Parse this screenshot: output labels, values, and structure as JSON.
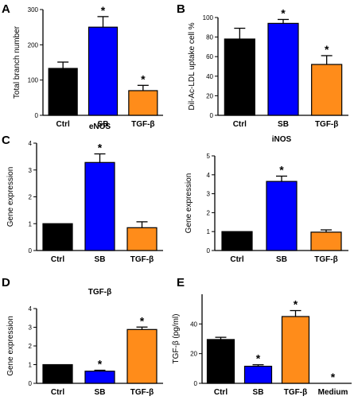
{
  "chart_data": [
    {
      "type": "bar",
      "panel_label": "A",
      "title": "",
      "ylabel": "Total branch number",
      "categories": [
        "Ctrl",
        "SB",
        "TGF-β"
      ],
      "values": [
        133,
        250,
        70
      ],
      "errors": [
        18,
        30,
        15
      ],
      "significant": [
        false,
        true,
        true
      ],
      "colors": [
        "#000000",
        "#0000ff",
        "#ff8c1a"
      ],
      "ylim": [
        0,
        300
      ],
      "yticks": [
        0,
        100,
        200,
        300
      ],
      "grid": false
    },
    {
      "type": "bar",
      "panel_label": "B",
      "title": "",
      "ylabel": "Dil-Ac-LDL uptake cell %",
      "categories": [
        "Ctrl",
        "SB",
        "TGF-β"
      ],
      "values": [
        78,
        94,
        52
      ],
      "errors": [
        11,
        4,
        9
      ],
      "significant": [
        false,
        true,
        true
      ],
      "colors": [
        "#000000",
        "#0000ff",
        "#ff8c1a"
      ],
      "ylim": [
        0,
        100
      ],
      "yticks": [
        0,
        20,
        40,
        60,
        80,
        100
      ],
      "grid": false
    },
    {
      "type": "bar",
      "panel_label": "C",
      "title": "eNOS",
      "ylabel": "Gene expression",
      "categories": [
        "Ctrl",
        "SB",
        "TGF-β"
      ],
      "values": [
        1.0,
        3.28,
        0.85
      ],
      "errors": [
        0,
        0.32,
        0.22
      ],
      "significant": [
        false,
        true,
        false
      ],
      "colors": [
        "#000000",
        "#0000ff",
        "#ff8c1a"
      ],
      "ylim": [
        0,
        4
      ],
      "yticks": [
        0,
        1,
        2,
        3,
        4
      ],
      "grid": false
    },
    {
      "type": "bar",
      "panel_label": "",
      "title": "iNOS",
      "ylabel": "Gene expression",
      "categories": [
        "Ctrl",
        "SB",
        "TGF-β"
      ],
      "values": [
        1.0,
        3.65,
        0.97
      ],
      "errors": [
        0,
        0.28,
        0.12
      ],
      "significant": [
        false,
        true,
        false
      ],
      "colors": [
        "#000000",
        "#0000ff",
        "#ff8c1a"
      ],
      "ylim": [
        0,
        5
      ],
      "yticks": [
        0,
        1,
        2,
        3,
        4,
        5
      ],
      "grid": false
    },
    {
      "type": "bar",
      "panel_label": "D",
      "title": "TGF-β",
      "ylabel": "Gene expression",
      "categories": [
        "Ctrl",
        "SB",
        "TGF-β"
      ],
      "values": [
        1.0,
        0.65,
        2.88
      ],
      "errors": [
        0,
        0.05,
        0.13
      ],
      "significant": [
        false,
        true,
        true
      ],
      "colors": [
        "#000000",
        "#0000ff",
        "#ff8c1a"
      ],
      "ylim": [
        0,
        4
      ],
      "yticks": [
        0,
        1,
        2,
        3,
        4
      ],
      "grid": false
    },
    {
      "type": "bar",
      "panel_label": "E",
      "title": "",
      "ylabel": "TGF-β (pg/ml)",
      "categories": [
        "Ctrl",
        "SB",
        "TGF-β",
        "Medium"
      ],
      "values": [
        29.5,
        11.5,
        45,
        0
      ],
      "errors": [
        1.5,
        1,
        4,
        0
      ],
      "significant": [
        false,
        true,
        true,
        true
      ],
      "colors": [
        "#000000",
        "#0000ff",
        "#ff8c1a",
        "#000000"
      ],
      "ylim": [
        0,
        60
      ],
      "yticks": [
        0,
        20,
        40
      ],
      "grid": false
    }
  ],
  "significance_marker": "*"
}
